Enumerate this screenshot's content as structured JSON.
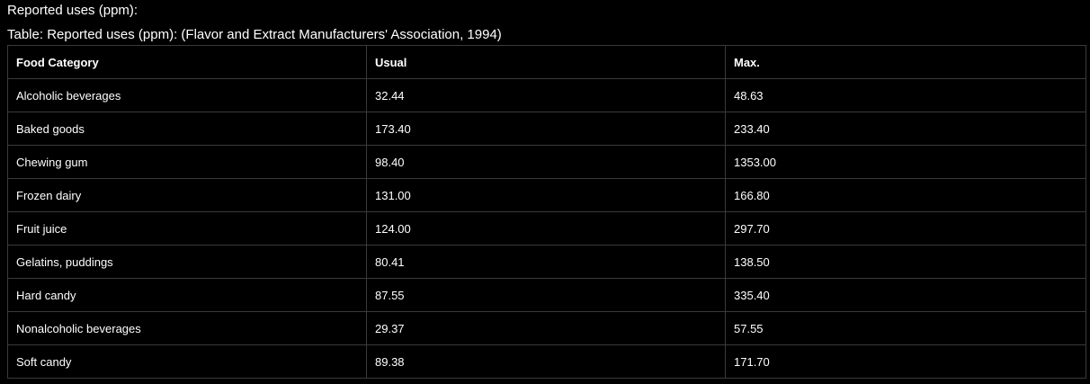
{
  "heading": "Reported uses (ppm):",
  "table": {
    "caption": "Table: Reported uses (ppm): (Flavor and Extract Manufacturers' Association, 1994)",
    "headers": [
      "Food Category",
      "Usual",
      "Max."
    ],
    "rows": [
      [
        "Alcoholic beverages",
        "32.44",
        "48.63"
      ],
      [
        "Baked goods",
        "173.40",
        "233.40"
      ],
      [
        "Chewing gum",
        "98.40",
        "1353.00"
      ],
      [
        "Frozen dairy",
        "131.00",
        "166.80"
      ],
      [
        "Fruit juice",
        "124.00",
        "297.70"
      ],
      [
        "Gelatins, puddings",
        "80.41",
        "138.50"
      ],
      [
        "Hard candy",
        "87.55",
        "335.40"
      ],
      [
        "Nonalcoholic beverages",
        "29.37",
        "57.55"
      ],
      [
        "Soft candy",
        "89.38",
        "171.70"
      ]
    ]
  }
}
